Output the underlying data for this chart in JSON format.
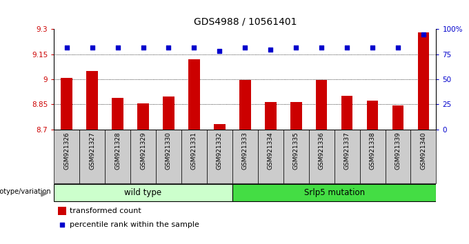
{
  "title": "GDS4988 / 10561401",
  "samples": [
    "GSM921326",
    "GSM921327",
    "GSM921328",
    "GSM921329",
    "GSM921330",
    "GSM921331",
    "GSM921332",
    "GSM921333",
    "GSM921334",
    "GSM921335",
    "GSM921336",
    "GSM921337",
    "GSM921338",
    "GSM921339",
    "GSM921340"
  ],
  "bar_values": [
    9.01,
    9.05,
    8.89,
    8.855,
    8.895,
    9.12,
    8.73,
    8.995,
    8.865,
    8.865,
    8.995,
    8.9,
    8.87,
    8.845,
    9.28
  ],
  "dot_values": [
    82,
    82,
    82,
    82,
    82,
    82,
    78,
    82,
    80,
    82,
    82,
    82,
    82,
    82,
    95
  ],
  "ylim_left": [
    8.7,
    9.3
  ],
  "ylim_right": [
    0,
    100
  ],
  "yticks_left": [
    8.7,
    8.85,
    9.0,
    9.15,
    9.3
  ],
  "ytick_labels_left": [
    "8.7",
    "8.85",
    "9",
    "9.15",
    "9.3"
  ],
  "yticks_right": [
    0,
    25,
    50,
    75,
    100
  ],
  "ytick_labels_right": [
    "0",
    "25",
    "50",
    "75",
    "100%"
  ],
  "bar_color": "#cc0000",
  "dot_color": "#0000cc",
  "grid_color": "#000000",
  "left_tick_color": "#cc0000",
  "right_tick_color": "#0000cc",
  "wild_type_count": 7,
  "mutation_count": 8,
  "wild_type_label": "wild type",
  "mutation_label": "Srlp5 mutation",
  "genotype_label": "genotype/variation",
  "legend_bar_label": "transformed count",
  "legend_dot_label": "percentile rank within the sample",
  "group_color_wt": "#ccffcc",
  "group_color_mut": "#44dd44",
  "bg_color": "#cccccc",
  "bar_width": 0.45,
  "title_fontsize": 10,
  "tick_fontsize": 7.5,
  "label_fontsize": 8
}
